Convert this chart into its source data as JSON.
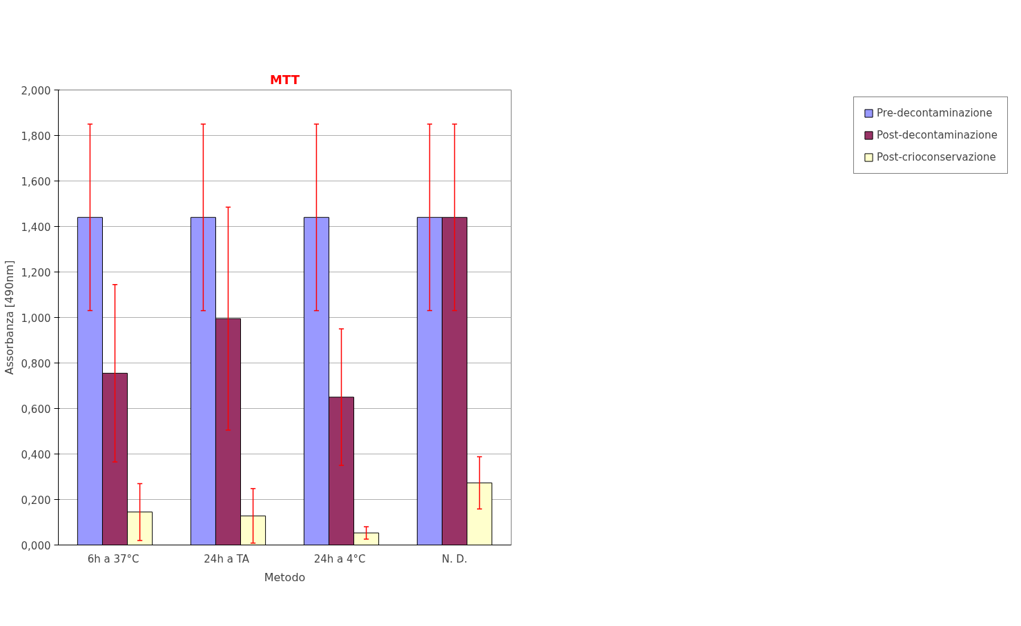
{
  "chart_data": {
    "type": "bar",
    "title": "MTT",
    "xlabel": "Metodo",
    "ylabel": "Assorbanza [490nm]",
    "categories": [
      "6h  a 37°C",
      "24h  a TA",
      "24h  a 4°C",
      "N. D."
    ],
    "series": [
      {
        "name": "Pre-decontaminazione",
        "color": "#9999ff",
        "values": [
          1.44,
          1.44,
          1.44,
          1.44
        ],
        "errors": [
          0.41,
          0.41,
          0.41,
          0.41
        ]
      },
      {
        "name": "Post-decontaminazione",
        "color": "#993366",
        "values": [
          0.755,
          0.995,
          0.65,
          1.44
        ],
        "errors": [
          0.39,
          0.49,
          0.3,
          0.41
        ]
      },
      {
        "name": "Post-crioconservazione",
        "color": "#ffffcc",
        "values": [
          0.145,
          0.128,
          0.053,
          0.273
        ],
        "errors": [
          0.125,
          0.12,
          0.027,
          0.115
        ]
      }
    ],
    "ylim": [
      0,
      2
    ],
    "yticks": [
      {
        "value": 0,
        "label": "0,000"
      },
      {
        "value": 0.2,
        "label": "0,200"
      },
      {
        "value": 0.4,
        "label": "0,400"
      },
      {
        "value": 0.6,
        "label": "0,600"
      },
      {
        "value": 0.8,
        "label": "0,800"
      },
      {
        "value": 1,
        "label": "1,000"
      },
      {
        "value": 1.2,
        "label": "1,200"
      },
      {
        "value": 1.4,
        "label": "1,400"
      },
      {
        "value": 1.6,
        "label": "1,600"
      },
      {
        "value": 1.8,
        "label": "1,800"
      },
      {
        "value": 2,
        "label": "2,000"
      }
    ],
    "grid": "y",
    "legend": "right"
  }
}
